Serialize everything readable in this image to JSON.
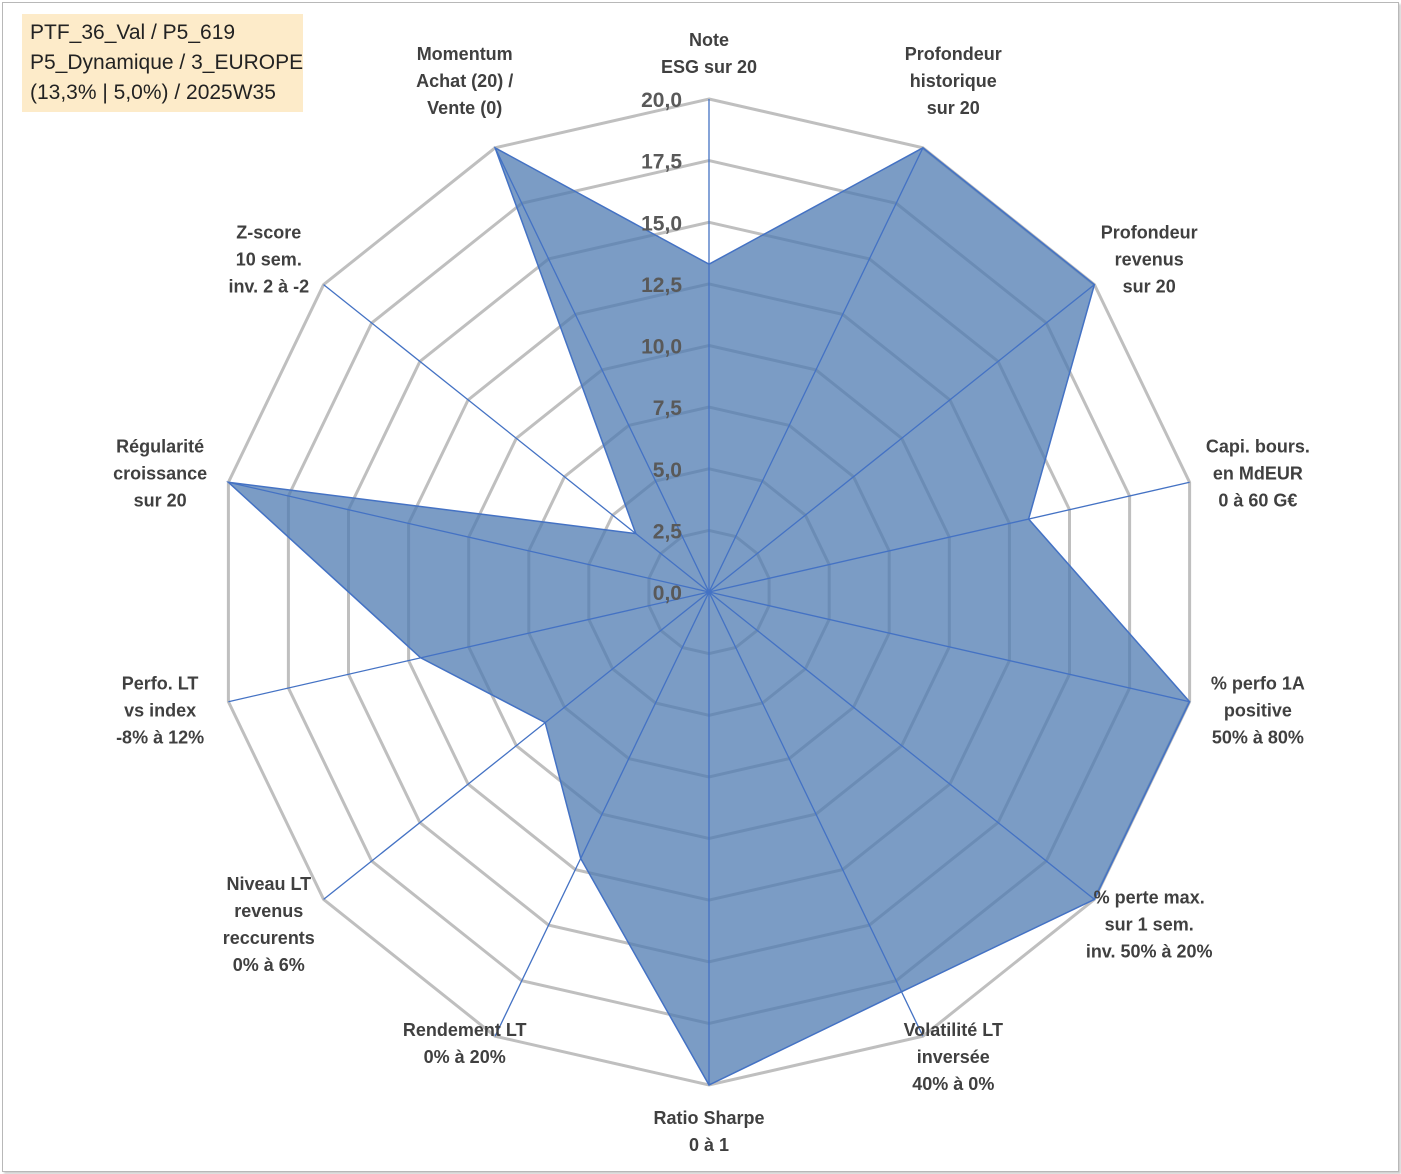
{
  "info_box": {
    "line1": "PTF_36_Val / P5_619",
    "line2": "P5_Dynamique / 3_EUROPE",
    "line3": "(13,3% | 5,0%) / 2025W35"
  },
  "colors": {
    "fill": "#4f7bb1",
    "line": "#4472c4",
    "grid": "#bfbfbf",
    "info_bg": "#fdebc9"
  },
  "chart_data": {
    "type": "radar",
    "rmin": 0,
    "rmax": 20,
    "ticks": [
      "0,0",
      "2,5",
      "5,0",
      "7,5",
      "10,0",
      "12,5",
      "15,0",
      "17,5",
      "20,0"
    ],
    "axes": [
      [
        "Note",
        "ESG sur 20"
      ],
      [
        "Profondeur",
        "historique",
        "sur 20"
      ],
      [
        "Profondeur",
        "revenus",
        "sur 20"
      ],
      [
        "Capi. bours.",
        "en MdEUR",
        "0 à 60 G€"
      ],
      [
        "% perfo 1A",
        "positive",
        "50% à 80%"
      ],
      [
        "% perte max.",
        "sur 1 sem.",
        "inv. 50% à 20%"
      ],
      [
        "Volatilité LT",
        "inversée",
        "40% à 0%"
      ],
      [
        "Ratio Sharpe",
        "0 à 1"
      ],
      [
        "Rendement LT",
        "0% à 20%"
      ],
      [
        "Niveau LT",
        "revenus",
        "reccurents",
        "0% à 6%"
      ],
      [
        "Perfo. LT",
        "vs index",
        "-8% à 12%"
      ],
      [
        "Régularité",
        "croissance",
        "sur 20"
      ],
      [
        "Z-score",
        "10 sem.",
        "inv. 2 à -2"
      ],
      [
        "Momentum",
        "Achat (20) /",
        "Vente (0)"
      ]
    ],
    "series": [
      {
        "values": [
          13.3,
          20,
          20,
          13.3,
          20,
          20,
          18,
          20,
          12,
          8.5,
          12,
          20,
          3.8,
          20
        ]
      }
    ]
  }
}
